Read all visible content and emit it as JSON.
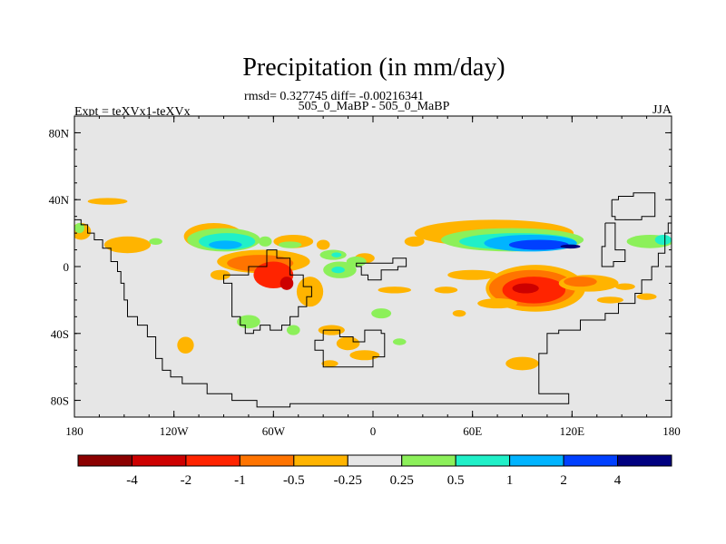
{
  "chart_data": {
    "type": "heatmap",
    "title": "Precipitation (in mm/day)",
    "stats_line": "rmsd= 0.327745 diff= -0.00216341",
    "subtitle": "505_0_MaBP - 505_0_MaBP",
    "left_label": "Expt = teXVx1-teXVx",
    "right_label": "JJA",
    "xlim": [
      -180,
      180
    ],
    "ylim": [
      -90,
      90
    ],
    "x_ticks": [
      {
        "value": -180,
        "label": "180"
      },
      {
        "value": -120,
        "label": "120W"
      },
      {
        "value": -60,
        "label": "60W"
      },
      {
        "value": 0,
        "label": "0"
      },
      {
        "value": 60,
        "label": "60E"
      },
      {
        "value": 120,
        "label": "120E"
      },
      {
        "value": 180,
        "label": "180"
      }
    ],
    "y_ticks": [
      {
        "value": 80,
        "label": "80N"
      },
      {
        "value": 40,
        "label": "40N"
      },
      {
        "value": 0,
        "label": "0"
      },
      {
        "value": -40,
        "label": "40S"
      },
      {
        "value": -80,
        "label": "80S"
      }
    ],
    "colorbar": {
      "colors": [
        "#8b0000",
        "#cd0000",
        "#ff2400",
        "#ff7400",
        "#ffb400",
        "#e6e6e6",
        "#8cf05a",
        "#20f0c8",
        "#00b4ff",
        "#0040ff",
        "#000080"
      ],
      "labels": [
        "-4",
        "-2",
        "-1",
        "-0.5",
        "-0.25",
        "0.25",
        "0.5",
        "1",
        "2",
        "4"
      ]
    },
    "background_color": "#e6e6e6",
    "regions": [
      {
        "level": 4,
        "lon": -160,
        "lat": 39,
        "rlon": 12,
        "rlat": 2
      },
      {
        "level": 4,
        "lon": -176,
        "lat": 21,
        "rlon": 6,
        "rlat": 5
      },
      {
        "level": 6,
        "lon": -177,
        "lat": 23,
        "rlon": 3,
        "rlat": 3
      },
      {
        "level": 4,
        "lon": -148,
        "lat": 13,
        "rlon": 14,
        "rlat": 5
      },
      {
        "level": 6,
        "lon": -131,
        "lat": 15,
        "rlon": 4,
        "rlat": 2
      },
      {
        "level": 4,
        "lon": -96,
        "lat": 18,
        "rlon": 18,
        "rlat": 8
      },
      {
        "level": 6,
        "lon": -90,
        "lat": 16,
        "rlon": 22,
        "rlat": 7
      },
      {
        "level": 7,
        "lon": -88,
        "lat": 15,
        "rlon": 17,
        "rlat": 5
      },
      {
        "level": 8,
        "lon": -89,
        "lat": 13,
        "rlon": 10,
        "rlat": 2.5
      },
      {
        "level": 6,
        "lon": -65,
        "lat": 15,
        "rlon": 4,
        "rlat": 3
      },
      {
        "level": 4,
        "lon": -48,
        "lat": 15,
        "rlon": 12,
        "rlat": 4
      },
      {
        "level": 6,
        "lon": -50,
        "lat": 13,
        "rlon": 7,
        "rlat": 2
      },
      {
        "level": 4,
        "lon": -30,
        "lat": 13,
        "rlon": 4,
        "rlat": 3
      },
      {
        "level": 6,
        "lon": -24,
        "lat": 7,
        "rlon": 8,
        "rlat": 3
      },
      {
        "level": 7,
        "lon": -22,
        "lat": 7,
        "rlon": 3,
        "rlat": 1.5
      },
      {
        "level": 4,
        "lon": -5,
        "lat": 5,
        "rlon": 6,
        "rlat": 3
      },
      {
        "level": 4,
        "lon": -66,
        "lat": 3,
        "rlon": 28,
        "rlat": 7
      },
      {
        "level": 3,
        "lon": -68,
        "lat": 2,
        "rlon": 20,
        "rlat": 5
      },
      {
        "level": 2,
        "lon": -60,
        "lat": -5,
        "rlon": 12,
        "rlat": 8
      },
      {
        "level": 1,
        "lon": -52,
        "lat": -10,
        "rlon": 4,
        "rlat": 4
      },
      {
        "level": 4,
        "lon": -38,
        "lat": -15,
        "rlon": 8,
        "rlat": 9
      },
      {
        "level": 6,
        "lon": -20,
        "lat": -2,
        "rlon": 10,
        "rlat": 5
      },
      {
        "level": 6,
        "lon": -10,
        "lat": 3,
        "rlon": 6,
        "rlat": 3
      },
      {
        "level": 7,
        "lon": -21,
        "lat": -2,
        "rlon": 4,
        "rlat": 2
      },
      {
        "level": 4,
        "lon": -92,
        "lat": -5,
        "rlon": 6,
        "rlat": 3
      },
      {
        "level": 4,
        "lon": 13,
        "lat": -14,
        "rlon": 10,
        "rlat": 2
      },
      {
        "level": 4,
        "lon": 44,
        "lat": -14,
        "rlon": 7,
        "rlat": 2
      },
      {
        "level": 4,
        "lon": 52,
        "lat": -28,
        "rlon": 4,
        "rlat": 2
      },
      {
        "level": 6,
        "lon": 5,
        "lat": -28,
        "rlon": 6,
        "rlat": 3
      },
      {
        "level": 6,
        "lon": -75,
        "lat": -33,
        "rlon": 7,
        "rlat": 4
      },
      {
        "level": 6,
        "lon": -48,
        "lat": -38,
        "rlon": 4,
        "rlat": 3
      },
      {
        "level": 4,
        "lon": -25,
        "lat": -38,
        "rlon": 8,
        "rlat": 3
      },
      {
        "level": 4,
        "lon": -113,
        "lat": -47,
        "rlon": 5,
        "rlat": 5
      },
      {
        "level": 4,
        "lon": -15,
        "lat": -46,
        "rlon": 7,
        "rlat": 4
      },
      {
        "level": 4,
        "lon": -5,
        "lat": -53,
        "rlon": 9,
        "rlat": 3
      },
      {
        "level": 4,
        "lon": -26,
        "lat": -58,
        "rlon": 5,
        "rlat": 2
      },
      {
        "level": 6,
        "lon": 16,
        "lat": -45,
        "rlon": 4,
        "rlat": 2
      },
      {
        "level": 4,
        "lon": 90,
        "lat": -58,
        "rlon": 10,
        "rlat": 4
      },
      {
        "level": 4,
        "lon": 143,
        "lat": -20,
        "rlon": 8,
        "rlat": 2
      },
      {
        "level": 4,
        "lon": 25,
        "lat": 15,
        "rlon": 6,
        "rlat": 3
      },
      {
        "level": 4,
        "lon": 73,
        "lat": 20,
        "rlon": 48,
        "rlat": 8
      },
      {
        "level": 6,
        "lon": 84,
        "lat": 16,
        "rlon": 43,
        "rlat": 7
      },
      {
        "level": 7,
        "lon": 87,
        "lat": 15,
        "rlon": 35,
        "rlat": 5
      },
      {
        "level": 8,
        "lon": 95,
        "lat": 14,
        "rlon": 28,
        "rlat": 5
      },
      {
        "level": 9,
        "lon": 100,
        "lat": 13,
        "rlon": 18,
        "rlat": 3
      },
      {
        "level": 10,
        "lon": 119,
        "lat": 12,
        "rlon": 6,
        "rlat": 1.2
      },
      {
        "level": 6,
        "lon": 167,
        "lat": 15,
        "rlon": 14,
        "rlat": 4
      },
      {
        "level": 7,
        "lon": 175,
        "lat": 16,
        "rlon": 5,
        "rlat": 3
      },
      {
        "level": 4,
        "lon": 98,
        "lat": -13,
        "rlon": 30,
        "rlat": 14
      },
      {
        "level": 3,
        "lon": 96,
        "lat": -13,
        "rlon": 26,
        "rlat": 11
      },
      {
        "level": 2,
        "lon": 97,
        "lat": -14,
        "rlon": 19,
        "rlat": 8
      },
      {
        "level": 1,
        "lon": 92,
        "lat": -13,
        "rlon": 8,
        "rlat": 3
      },
      {
        "level": 4,
        "lon": 130,
        "lat": -10,
        "rlon": 18,
        "rlat": 5
      },
      {
        "level": 3,
        "lon": 125,
        "lat": -9,
        "rlon": 10,
        "rlat": 3
      },
      {
        "level": 4,
        "lon": 75,
        "lat": -22,
        "rlon": 12,
        "rlat": 3
      },
      {
        "level": 4,
        "lon": 60,
        "lat": -5,
        "rlon": 15,
        "rlat": 3
      },
      {
        "level": 4,
        "lon": 152,
        "lat": -12,
        "rlon": 6,
        "rlat": 2
      },
      {
        "level": 4,
        "lon": 165,
        "lat": -18,
        "rlon": 6,
        "rlat": 2
      }
    ],
    "coastlines": [
      [
        [
          -180,
          28
        ],
        [
          -176,
          28
        ],
        [
          -176,
          25
        ],
        [
          -172,
          25
        ],
        [
          -172,
          20
        ],
        [
          -168,
          20
        ],
        [
          -168,
          16
        ],
        [
          -163,
          16
        ],
        [
          -163,
          11
        ],
        [
          -158,
          11
        ],
        [
          -158,
          3
        ],
        [
          -154,
          3
        ],
        [
          -154,
          -3
        ],
        [
          -152,
          -3
        ],
        [
          -152,
          -10
        ],
        [
          -150,
          -10
        ],
        [
          -150,
          -20
        ],
        [
          -148,
          -20
        ],
        [
          -148,
          -30
        ],
        [
          -142,
          -30
        ],
        [
          -142,
          -35
        ],
        [
          -136,
          -35
        ],
        [
          -136,
          -42
        ],
        [
          -131,
          -42
        ],
        [
          -131,
          -55
        ],
        [
          -127,
          -55
        ],
        [
          -127,
          -62
        ],
        [
          -122,
          -62
        ],
        [
          -122,
          -66
        ],
        [
          -115,
          -66
        ],
        [
          -115,
          -70
        ],
        [
          -100,
          -70
        ],
        [
          -100,
          -76
        ],
        [
          -85,
          -76
        ],
        [
          -85,
          -80
        ],
        [
          -70,
          -80
        ],
        [
          -70,
          -84
        ],
        [
          -50,
          -84
        ],
        [
          -50,
          -82
        ],
        [
          -45,
          -82
        ],
        [
          -45,
          -82
        ],
        [
          118,
          -82
        ],
        [
          118,
          -76
        ],
        [
          100,
          -76
        ],
        [
          100,
          -52
        ],
        [
          105,
          -52
        ],
        [
          105,
          -40
        ],
        [
          112,
          -40
        ],
        [
          112,
          -38
        ],
        [
          125,
          -38
        ],
        [
          125,
          -32
        ],
        [
          140,
          -32
        ],
        [
          140,
          -28
        ],
        [
          148,
          -28
        ],
        [
          148,
          -22
        ],
        [
          158,
          -22
        ],
        [
          158,
          -16
        ],
        [
          162,
          -16
        ],
        [
          162,
          -8
        ],
        [
          168,
          -8
        ],
        [
          168,
          0
        ],
        [
          172,
          0
        ],
        [
          172,
          8
        ],
        [
          176,
          8
        ],
        [
          176,
          20
        ],
        [
          178,
          20
        ],
        [
          178,
          26
        ],
        [
          180,
          26
        ]
      ],
      [
        [
          -90,
          -5
        ],
        [
          -90,
          -10
        ],
        [
          -85,
          -10
        ],
        [
          -85,
          -30
        ],
        [
          -80,
          -30
        ],
        [
          -80,
          -35
        ],
        [
          -77,
          -35
        ],
        [
          -77,
          -40
        ],
        [
          -72,
          -40
        ],
        [
          -72,
          -38
        ],
        [
          -68,
          -38
        ],
        [
          -68,
          -35
        ],
        [
          -62,
          -35
        ],
        [
          -62,
          -38
        ],
        [
          -55,
          -38
        ],
        [
          -55,
          -35
        ],
        [
          -50,
          -35
        ],
        [
          -50,
          -30
        ],
        [
          -45,
          -30
        ],
        [
          -45,
          -24
        ],
        [
          -40,
          -24
        ],
        [
          -40,
          -18
        ],
        [
          -37,
          -18
        ],
        [
          -37,
          -12
        ],
        [
          -42,
          -12
        ],
        [
          -42,
          -5
        ],
        [
          -50,
          -5
        ],
        [
          -50,
          5
        ],
        [
          -58,
          5
        ],
        [
          -58,
          10
        ],
        [
          -64,
          10
        ],
        [
          -64,
          0
        ],
        [
          -75,
          0
        ],
        [
          -75,
          -5
        ],
        [
          -90,
          -5
        ]
      ],
      [
        [
          -30,
          -38
        ],
        [
          -20,
          -38
        ],
        [
          -20,
          -42
        ],
        [
          -12,
          -42
        ],
        [
          -12,
          -45
        ],
        [
          -5,
          -45
        ],
        [
          -5,
          -38
        ],
        [
          5,
          -38
        ],
        [
          5,
          -40
        ],
        [
          7,
          -40
        ],
        [
          7,
          -54
        ],
        [
          0,
          -54
        ],
        [
          0,
          -60
        ],
        [
          -30,
          -60
        ],
        [
          -30,
          -50
        ],
        [
          -35,
          -50
        ],
        [
          -35,
          -44
        ],
        [
          -30,
          -44
        ],
        [
          -30,
          -38
        ]
      ],
      [
        [
          2,
          2
        ],
        [
          -10,
          2
        ],
        [
          -10,
          0
        ],
        [
          -7,
          0
        ],
        [
          -7,
          -5
        ],
        [
          -3,
          -5
        ],
        [
          -3,
          -8
        ],
        [
          5,
          -8
        ],
        [
          5,
          -2
        ],
        [
          15,
          -2
        ],
        [
          15,
          0
        ],
        [
          20,
          0
        ],
        [
          20,
          5
        ],
        [
          12,
          5
        ],
        [
          12,
          2
        ],
        [
          2,
          2
        ]
      ],
      [
        [
          144,
          40
        ],
        [
          148,
          40
        ],
        [
          148,
          42
        ],
        [
          157,
          42
        ],
        [
          157,
          44
        ],
        [
          170,
          44
        ],
        [
          170,
          30
        ],
        [
          162,
          30
        ],
        [
          162,
          28
        ],
        [
          146,
          28
        ],
        [
          146,
          30
        ],
        [
          144,
          30
        ],
        [
          144,
          40
        ]
      ],
      [
        [
          140,
          26
        ],
        [
          146,
          26
        ],
        [
          146,
          10
        ],
        [
          152,
          10
        ],
        [
          152,
          3
        ],
        [
          145,
          3
        ],
        [
          145,
          0
        ],
        [
          138,
          0
        ],
        [
          138,
          12
        ],
        [
          140,
          12
        ],
        [
          140,
          26
        ]
      ]
    ]
  }
}
